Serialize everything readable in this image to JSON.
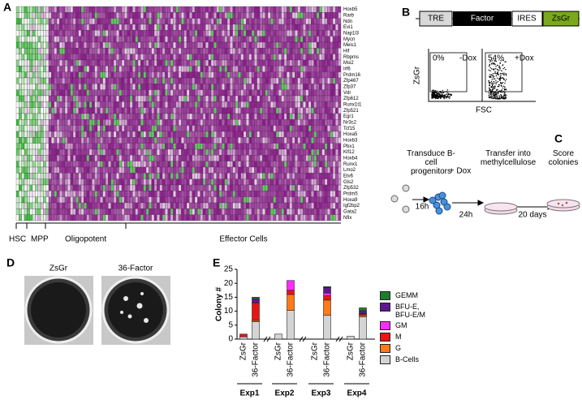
{
  "panel_labels": [
    "A",
    "B",
    "C",
    "D",
    "E"
  ],
  "heatmap": {
    "genes": [
      "Hoxb5",
      "Rarb",
      "Ndn",
      "Evi1",
      "Nap1l3",
      "Mycn",
      "Meis1",
      "Hlf",
      "Rbpms",
      "Msi2",
      "Irf6",
      "Prdm16",
      "Zfp467",
      "Zfp37",
      "Vdr",
      "Zfp612",
      "Runx1t1",
      "Zfp521",
      "Egr1",
      "Nr3c2",
      "Tcf15",
      "Hoxa5",
      "Hoxb3",
      "Pbx1",
      "Klf12",
      "Hoxb4",
      "Runx1",
      "Lmo2",
      "Etv6",
      "Gls2",
      "Zfp532",
      "Prdm5",
      "Hoxa9",
      "Igf2bp2",
      "Gata2",
      "Nfix"
    ],
    "x_labels": [
      "HSC",
      "MPP",
      "Oligopotent",
      "Effector Cells"
    ]
  },
  "construct": [
    "TRE",
    "Factor",
    "IRES",
    "ZsGr"
  ],
  "flow": {
    "y_label": "ZsGr",
    "x_label": "FSC",
    "plots": [
      {
        "percent": "0%",
        "condition": "-Dox"
      },
      {
        "percent": "54%",
        "condition": "+Dox"
      }
    ]
  },
  "protocol": {
    "steps": [
      "Transduce B-cell progenitors",
      "Transfer into methylcellulose",
      "Score colonies"
    ],
    "treatment": "+ Dox",
    "durations": [
      "16h",
      "24h",
      "20 days"
    ]
  },
  "wells": [
    "ZsGr",
    "36-Factor"
  ],
  "chart_data": {
    "type": "bar",
    "stacked": true,
    "y_label": "Colony #",
    "groups": [
      "Exp1",
      "Exp2",
      "Exp3",
      "Exp4"
    ],
    "categories": [
      "ZsGr",
      "36-Factor",
      "ZsGr",
      "36-Factor",
      "ZsGr",
      "36-Factor",
      "ZsGr",
      "36-Factor"
    ],
    "series": [
      {
        "name": "B-Cells",
        "color": "#d4d4d4",
        "values": [
          0.8,
          6.2,
          1.8,
          10.3,
          0,
          8.5,
          1,
          8
        ]
      },
      {
        "name": "G",
        "color": "#ff7a1a",
        "values": [
          0,
          0.5,
          0,
          5.7,
          0,
          5.5,
          0,
          0.5
        ]
      },
      {
        "name": "M",
        "color": "#e81414",
        "values": [
          1,
          6.3,
          0,
          1.5,
          0,
          1.5,
          0,
          0.5
        ]
      },
      {
        "name": "GM",
        "color": "#ff2cff",
        "values": [
          0,
          0,
          0,
          3.5,
          0,
          1,
          0,
          0.2
        ]
      },
      {
        "name": "BFU-E, BFU-E/M",
        "color": "#5b1a8c",
        "values": [
          0,
          1.5,
          0,
          0,
          0,
          2,
          0,
          1
        ]
      },
      {
        "name": "GEMM",
        "color": "#1d7d2c",
        "values": [
          0,
          0.5,
          0,
          0,
          0,
          0.3,
          0,
          1
        ]
      }
    ],
    "ylim": [
      0,
      25
    ],
    "yticks": [
      0,
      5,
      10,
      15,
      20,
      25
    ]
  }
}
